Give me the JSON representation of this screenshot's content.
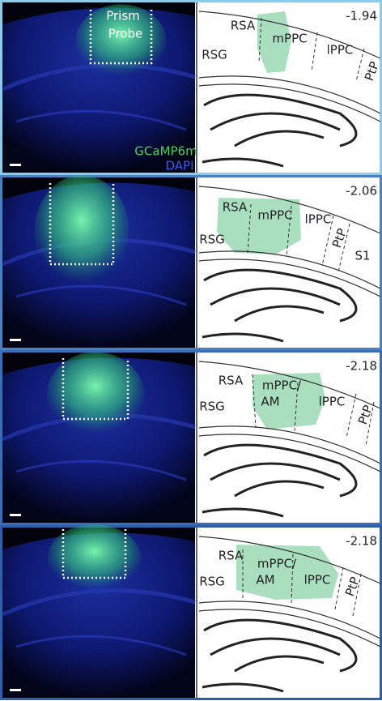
{
  "panels": [
    {
      "coordinate": "-1.94",
      "labels": [
        "RSA",
        "mPPC",
        "lPPC",
        "RSG",
        "PtP"
      ]
    },
    {
      "coordinate": "-2.06",
      "labels": [
        "RSA",
        "mPPC",
        "lPPC",
        "RSG",
        "PtP",
        "S1"
      ]
    },
    {
      "coordinate": "-2.18",
      "labels": [
        "RSA",
        "mPPC/",
        "AM",
        "lPPC",
        "RSG",
        "PtP"
      ]
    },
    {
      "coordinate": "-2.18",
      "labels": [
        "RSA",
        "mPPC/",
        "AM",
        "lPPC",
        "RSG",
        "PtP"
      ]
    }
  ],
  "image_labels": {
    "prism": "Prism",
    "probe": "Probe",
    "indicator": "GCaMP6m",
    "stain": "DAPI"
  }
}
